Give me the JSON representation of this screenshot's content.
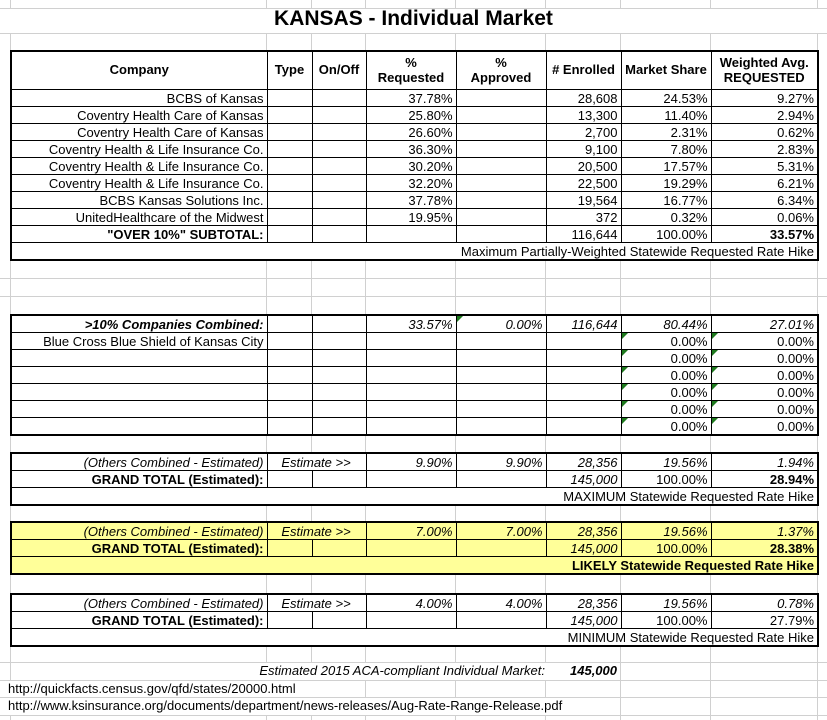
{
  "title": "KANSAS - Individual Market",
  "columns": [
    "Company",
    "Type",
    "On/Off",
    "%\nRequested",
    "%\nApproved",
    "# Enrolled",
    "Market Share",
    "Weighted Avg.\nREQUESTED"
  ],
  "main_table": {
    "rows": [
      {
        "company": "BCBS of Kansas",
        "requested": "37.78%",
        "enrolled": "28,608",
        "share": "24.53%",
        "weighted": "9.27%"
      },
      {
        "company": "Coventry Health Care of Kansas",
        "requested": "25.80%",
        "enrolled": "13,300",
        "share": "11.40%",
        "weighted": "2.94%"
      },
      {
        "company": "Coventry Health Care of Kansas",
        "requested": "26.60%",
        "enrolled": "2,700",
        "share": "2.31%",
        "weighted": "0.62%"
      },
      {
        "company": "Coventry Health & Life Insurance Co.",
        "requested": "36.30%",
        "enrolled": "9,100",
        "share": "7.80%",
        "weighted": "2.83%"
      },
      {
        "company": "Coventry Health & Life Insurance Co.",
        "requested": "30.20%",
        "enrolled": "20,500",
        "share": "17.57%",
        "weighted": "5.31%"
      },
      {
        "company": "Coventry Health & Life Insurance Co.",
        "requested": "32.20%",
        "enrolled": "22,500",
        "share": "19.29%",
        "weighted": "6.21%"
      },
      {
        "company": "BCBS Kansas Solutions Inc.",
        "requested": "37.78%",
        "enrolled": "19,564",
        "share": "16.77%",
        "weighted": "6.34%"
      },
      {
        "company": "UnitedHealthcare of the Midwest",
        "requested": "19.95%",
        "enrolled": "372",
        "share": "0.32%",
        "weighted": "0.06%"
      }
    ],
    "subtotal": {
      "label": "\"OVER 10%\" SUBTOTAL:",
      "enrolled": "116,644",
      "share": "100.00%",
      "weighted": "33.57%"
    },
    "note": "Maximum Partially-Weighted Statewide Requested Rate Hike"
  },
  "combined_table": {
    "combined_row": {
      "label": ">10% Companies Combined:",
      "requested": "33.57%",
      "approved": "0.00%",
      "enrolled": "116,644",
      "share": "80.44%",
      "weighted": "27.01%"
    },
    "company_rows": [
      {
        "company": "Blue Cross Blue Shield of Kansas City",
        "share": "0.00%",
        "weighted": "0.00%"
      },
      {
        "company": "",
        "share": "0.00%",
        "weighted": "0.00%"
      },
      {
        "company": "",
        "share": "0.00%",
        "weighted": "0.00%"
      },
      {
        "company": "",
        "share": "0.00%",
        "weighted": "0.00%"
      },
      {
        "company": "",
        "share": "0.00%",
        "weighted": "0.00%"
      },
      {
        "company": "",
        "share": "0.00%",
        "weighted": "0.00%"
      }
    ]
  },
  "scenarios": [
    {
      "id": "maximum",
      "others_label": "(Others Combined - Estimated)",
      "estimate_label": "Estimate >>",
      "requested": "9.90%",
      "approved": "9.90%",
      "enrolled": "28,356",
      "share": "19.56%",
      "weighted": "1.94%",
      "total_label": "GRAND TOTAL (Estimated):",
      "total_enrolled": "145,000",
      "total_share": "100.00%",
      "total_weighted": "28.94%",
      "total_bold": true,
      "note": "MAXIMUM Statewide Requested Rate Hike",
      "note_bold": false,
      "highlight": false
    },
    {
      "id": "likely",
      "others_label": "(Others Combined - Estimated)",
      "estimate_label": "Estimate >>",
      "requested": "7.00%",
      "approved": "7.00%",
      "enrolled": "28,356",
      "share": "19.56%",
      "weighted": "1.37%",
      "total_label": "GRAND TOTAL (Estimated):",
      "total_enrolled": "145,000",
      "total_share": "100.00%",
      "total_weighted": "28.38%",
      "total_bold": true,
      "note": "LIKELY Statewide Requested Rate Hike",
      "note_bold": true,
      "highlight": true
    },
    {
      "id": "minimum",
      "others_label": "(Others Combined - Estimated)",
      "estimate_label": "Estimate >>",
      "requested": "4.00%",
      "approved": "4.00%",
      "enrolled": "28,356",
      "share": "19.56%",
      "weighted": "0.78%",
      "total_label": "GRAND TOTAL (Estimated):",
      "total_enrolled": "145,000",
      "total_share": "100.00%",
      "total_weighted": "27.79%",
      "total_bold": false,
      "note": "MINIMUM Statewide Requested Rate Hike",
      "note_bold": false,
      "highlight": false
    }
  ],
  "footer": {
    "estimate_label": "Estimated 2015 ACA-compliant Individual Market:",
    "estimate_value": "145,000",
    "links": [
      "http://quickfacts.census.gov/qfd/states/20000.html",
      "http://www.ksinsurance.org/documents/department/news-releases/Aug-Rate-Range-Release.pdf"
    ]
  },
  "colors": {
    "highlight": "#FFFF99",
    "triangle": "#1E7A1E",
    "gridline": "#D0D0D0"
  }
}
